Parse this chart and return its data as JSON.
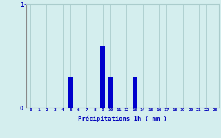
{
  "hours": [
    0,
    1,
    2,
    3,
    4,
    5,
    6,
    7,
    8,
    9,
    10,
    11,
    12,
    13,
    14,
    15,
    16,
    17,
    18,
    19,
    20,
    21,
    22,
    23
  ],
  "values": [
    0,
    0,
    0,
    0,
    0,
    0.3,
    0,
    0,
    0,
    0.6,
    0.3,
    0,
    0,
    0.3,
    0,
    0,
    0,
    0,
    0,
    0,
    0,
    0,
    0,
    0
  ],
  "bar_color": "#0000cc",
  "bg_color": "#d4eeee",
  "grid_color": "#aacccc",
  "axis_color": "#888888",
  "text_color": "#0000bb",
  "xlabel": "Précipitations 1h ( mm )",
  "ylim": [
    0,
    1.0
  ],
  "yticks": [
    0,
    1
  ],
  "xtick_labels": [
    "0",
    "1",
    "2",
    "3",
    "4",
    "5",
    "6",
    "7",
    "8",
    "9",
    "10",
    "11",
    "12",
    "13",
    "14",
    "15",
    "16",
    "17",
    "18",
    "19",
    "20",
    "21",
    "22",
    "23"
  ]
}
